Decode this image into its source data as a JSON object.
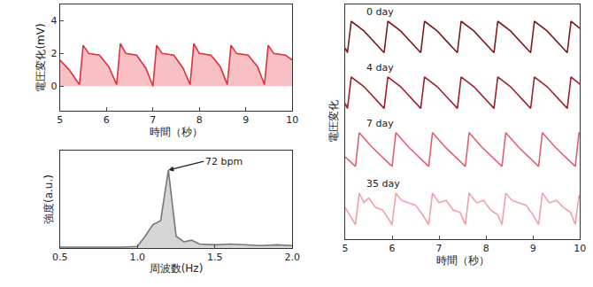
{
  "chart_data": [
    {
      "type": "area",
      "x_label": "時間（秒）",
      "y_label": "電圧変化(mV)",
      "xlim": [
        5,
        10
      ],
      "xticks": [
        5,
        6,
        7,
        8,
        9,
        10
      ],
      "ylim": [
        -1.5,
        5
      ],
      "yticks": [
        0,
        2,
        4
      ],
      "grid": false,
      "series": [
        {
          "name": "電圧変化",
          "color": "#e0303a",
          "x": [
            5.0,
            5.2,
            5.42,
            5.5,
            5.62,
            5.85,
            6.05,
            6.22,
            6.3,
            6.42,
            6.65,
            6.85,
            7.0,
            7.08,
            7.2,
            7.45,
            7.65,
            7.8,
            7.88,
            8.0,
            8.25,
            8.45,
            8.6,
            8.68,
            8.8,
            9.05,
            9.25,
            9.4,
            9.48,
            9.6,
            9.85,
            10.0
          ],
          "values": [
            1.6,
            1.0,
            0.1,
            2.5,
            2.0,
            1.9,
            1.2,
            0.1,
            2.6,
            2.0,
            1.9,
            1.1,
            0.0,
            2.5,
            2.0,
            1.9,
            1.1,
            0.1,
            2.6,
            2.0,
            1.9,
            1.2,
            0.1,
            2.5,
            2.0,
            1.9,
            1.2,
            0.1,
            2.5,
            2.0,
            1.9,
            1.6
          ]
        }
      ]
    },
    {
      "type": "area",
      "x_label": "周波数(Hz)",
      "y_label": "強度(a.u.)",
      "xlim": [
        0.5,
        2.0
      ],
      "xticks": [
        {
          "value": 0.5,
          "label": "0.5"
        },
        {
          "value": 1.0,
          "label": "1.0"
        },
        {
          "value": 1.5,
          "label": "1.5"
        },
        {
          "value": 2.0,
          "label": "2.0"
        }
      ],
      "ylim": [
        0,
        1.25
      ],
      "yticks": [],
      "tick_labels": "x",
      "grid": false,
      "annotations": [
        {
          "text": "72 bpm",
          "x": 1.2,
          "y": 1.0
        }
      ],
      "series": [
        {
          "name": "強度",
          "color": "#777777",
          "x": [
            0.5,
            0.6,
            0.7,
            0.8,
            0.9,
            1.0,
            1.05,
            1.1,
            1.15,
            1.2,
            1.25,
            1.3,
            1.35,
            1.4,
            1.5,
            1.6,
            1.7,
            1.8,
            1.9,
            2.0
          ],
          "values": [
            0.01,
            0.01,
            0.01,
            0.01,
            0.01,
            0.02,
            0.15,
            0.3,
            0.35,
            1.0,
            0.15,
            0.08,
            0.1,
            0.05,
            0.04,
            0.05,
            0.04,
            0.03,
            0.04,
            0.03
          ]
        }
      ]
    },
    {
      "type": "line",
      "x_label": "時間（秒）",
      "y_label": "電圧変化",
      "xlim": [
        5,
        10
      ],
      "xticks": [
        5,
        6,
        7,
        8,
        9,
        10
      ],
      "ylim": [
        0.5,
        10.2
      ],
      "yticks": [],
      "tick_labels": "x",
      "grid": false,
      "series": [
        {
          "name": "0 day",
          "color": "#7a1a1a",
          "x": [
            5.0,
            5.05,
            5.13,
            5.4,
            5.83,
            5.91,
            6.18,
            6.61,
            6.69,
            6.96,
            7.39,
            7.47,
            7.74,
            8.17,
            8.25,
            8.52,
            8.95,
            9.03,
            9.3,
            9.73,
            9.81,
            10.0
          ],
          "values": [
            8.4,
            8.2,
            9.5,
            9.1,
            8.2,
            9.5,
            9.1,
            8.2,
            9.5,
            9.1,
            8.2,
            9.5,
            9.1,
            8.2,
            9.5,
            9.1,
            8.2,
            9.5,
            9.1,
            8.2,
            9.5,
            9.2
          ]
        },
        {
          "name": "4 day",
          "color": "#a0202a",
          "x": [
            5.0,
            5.05,
            5.13,
            5.4,
            5.83,
            5.91,
            6.18,
            6.61,
            6.69,
            6.96,
            7.39,
            7.47,
            7.74,
            8.17,
            8.25,
            8.52,
            8.95,
            9.03,
            9.3,
            9.73,
            9.81,
            10.0
          ],
          "values": [
            6.1,
            5.9,
            7.2,
            6.8,
            5.9,
            7.2,
            6.8,
            5.9,
            7.2,
            6.8,
            5.9,
            7.2,
            6.8,
            5.9,
            7.2,
            6.8,
            5.9,
            7.2,
            6.8,
            5.9,
            7.2,
            6.9
          ]
        },
        {
          "name": "7 day",
          "color": "#e06070",
          "x": [
            5.0,
            5.22,
            5.3,
            5.57,
            6.0,
            6.08,
            6.35,
            6.78,
            6.86,
            7.13,
            7.56,
            7.64,
            7.91,
            8.34,
            8.42,
            8.69,
            9.12,
            9.2,
            9.47,
            9.9,
            9.98,
            10.0
          ],
          "values": [
            3.9,
            3.5,
            4.9,
            4.3,
            3.5,
            4.9,
            4.3,
            3.5,
            4.9,
            4.3,
            3.5,
            4.9,
            4.3,
            3.5,
            4.9,
            4.3,
            3.5,
            4.9,
            4.3,
            3.5,
            4.9,
            4.85
          ]
        },
        {
          "name": "35 day",
          "color": "#f0a0a8",
          "x": [
            5.0,
            5.1,
            5.22,
            5.3,
            5.4,
            5.5,
            5.65,
            5.8,
            6.0,
            6.08,
            6.2,
            6.35,
            6.5,
            6.65,
            6.78,
            6.86,
            7.0,
            7.15,
            7.3,
            7.45,
            7.56,
            7.64,
            7.8,
            7.95,
            8.1,
            8.25,
            8.34,
            8.42,
            8.55,
            8.7,
            8.85,
            9.0,
            9.12,
            9.2,
            9.35,
            9.5,
            9.65,
            9.8,
            9.9,
            9.98,
            10.0
          ],
          "values": [
            1.8,
            1.5,
            1.1,
            2.4,
            2.0,
            2.2,
            1.8,
            1.7,
            1.1,
            2.4,
            2.1,
            2.0,
            1.9,
            1.5,
            1.1,
            2.4,
            2.0,
            2.1,
            1.7,
            1.6,
            1.1,
            2.4,
            2.0,
            2.1,
            1.7,
            1.5,
            1.1,
            2.4,
            2.1,
            2.0,
            1.9,
            1.5,
            1.1,
            2.4,
            2.0,
            2.1,
            1.8,
            1.6,
            1.1,
            2.3,
            2.2
          ]
        }
      ]
    }
  ]
}
